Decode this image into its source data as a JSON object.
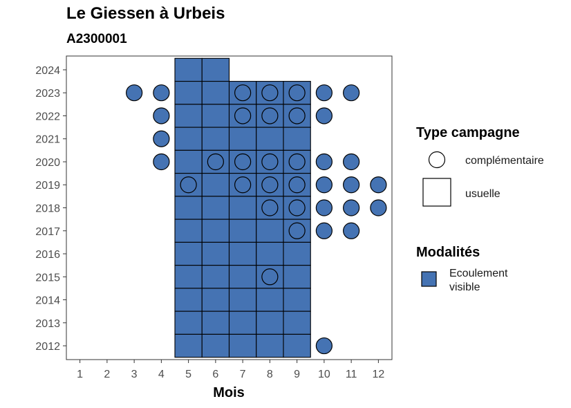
{
  "chart_data": {
    "type": "scatter",
    "title": "Le Giessen à Urbeis",
    "subtitle": "A2300001",
    "xlabel": "Mois",
    "ylabel": "",
    "x_ticks": [
      1,
      2,
      3,
      4,
      5,
      6,
      7,
      8,
      9,
      10,
      11,
      12
    ],
    "y_ticks": [
      2012,
      2013,
      2014,
      2015,
      2016,
      2017,
      2018,
      2019,
      2020,
      2021,
      2022,
      2023,
      2024
    ],
    "xlim": [
      0.5,
      12.5
    ],
    "ylim": [
      2011.4,
      2024.6
    ],
    "fill_color": "#4573b3",
    "grid": false,
    "legend_position": "right",
    "series": [
      {
        "shape": "square",
        "points": [
          [
            5,
            2024
          ],
          [
            6,
            2024
          ],
          [
            5,
            2023
          ],
          [
            6,
            2023
          ],
          [
            7,
            2023
          ],
          [
            8,
            2023
          ],
          [
            9,
            2023
          ],
          [
            5,
            2022
          ],
          [
            6,
            2022
          ],
          [
            7,
            2022
          ],
          [
            8,
            2022
          ],
          [
            9,
            2022
          ],
          [
            5,
            2021
          ],
          [
            6,
            2021
          ],
          [
            7,
            2021
          ],
          [
            8,
            2021
          ],
          [
            9,
            2021
          ],
          [
            5,
            2020
          ],
          [
            6,
            2020
          ],
          [
            7,
            2020
          ],
          [
            8,
            2020
          ],
          [
            9,
            2020
          ],
          [
            5,
            2019
          ],
          [
            6,
            2019
          ],
          [
            7,
            2019
          ],
          [
            8,
            2019
          ],
          [
            9,
            2019
          ],
          [
            5,
            2018
          ],
          [
            6,
            2018
          ],
          [
            7,
            2018
          ],
          [
            8,
            2018
          ],
          [
            9,
            2018
          ],
          [
            5,
            2017
          ],
          [
            6,
            2017
          ],
          [
            7,
            2017
          ],
          [
            8,
            2017
          ],
          [
            9,
            2017
          ],
          [
            5,
            2016
          ],
          [
            6,
            2016
          ],
          [
            7,
            2016
          ],
          [
            8,
            2016
          ],
          [
            9,
            2016
          ],
          [
            5,
            2015
          ],
          [
            6,
            2015
          ],
          [
            7,
            2015
          ],
          [
            8,
            2015
          ],
          [
            9,
            2015
          ],
          [
            5,
            2014
          ],
          [
            6,
            2014
          ],
          [
            7,
            2014
          ],
          [
            8,
            2014
          ],
          [
            9,
            2014
          ],
          [
            5,
            2013
          ],
          [
            6,
            2013
          ],
          [
            7,
            2013
          ],
          [
            8,
            2013
          ],
          [
            9,
            2013
          ],
          [
            5,
            2012
          ],
          [
            6,
            2012
          ],
          [
            7,
            2012
          ],
          [
            8,
            2012
          ],
          [
            9,
            2012
          ]
        ]
      },
      {
        "shape": "circle",
        "points": [
          [
            3,
            2023
          ],
          [
            4,
            2023
          ],
          [
            7,
            2023
          ],
          [
            8,
            2023
          ],
          [
            9,
            2023
          ],
          [
            10,
            2023
          ],
          [
            11,
            2023
          ],
          [
            4,
            2022
          ],
          [
            7,
            2022
          ],
          [
            8,
            2022
          ],
          [
            9,
            2022
          ],
          [
            10,
            2022
          ],
          [
            4,
            2021
          ],
          [
            4,
            2020
          ],
          [
            6,
            2020
          ],
          [
            7,
            2020
          ],
          [
            8,
            2020
          ],
          [
            9,
            2020
          ],
          [
            10,
            2020
          ],
          [
            11,
            2020
          ],
          [
            5,
            2019
          ],
          [
            7,
            2019
          ],
          [
            8,
            2019
          ],
          [
            9,
            2019
          ],
          [
            10,
            2019
          ],
          [
            11,
            2019
          ],
          [
            12,
            2019
          ],
          [
            8,
            2018
          ],
          [
            9,
            2018
          ],
          [
            10,
            2018
          ],
          [
            11,
            2018
          ],
          [
            12,
            2018
          ],
          [
            9,
            2017
          ],
          [
            10,
            2017
          ],
          [
            11,
            2017
          ],
          [
            8,
            2015
          ],
          [
            10,
            2012
          ]
        ]
      }
    ],
    "legend": {
      "type_title": "Type campagne",
      "type_items": [
        {
          "shape": "circle",
          "label": "complémentaire"
        },
        {
          "shape": "square",
          "label": "usuelle"
        }
      ],
      "modalites_title": "Modalités",
      "modalites_items": [
        {
          "label_line1": "Ecoulement",
          "label_line2": "visible",
          "color": "#4573b3"
        }
      ]
    }
  }
}
